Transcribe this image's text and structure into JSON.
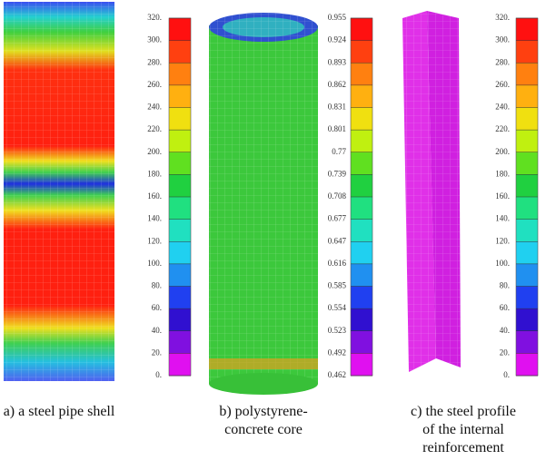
{
  "panels": [
    {
      "scale_labels": [
        "320.",
        "300.",
        "280.",
        "260.",
        "240.",
        "220.",
        "200.",
        "180.",
        "160.",
        "140.",
        "120.",
        "100.",
        "80.",
        "60.",
        "40.",
        "20.",
        "0."
      ],
      "caption_lines": [
        "a)  a steel pipe shell"
      ]
    },
    {
      "scale_labels": [
        "0.955",
        "0.924",
        "0.893",
        "0.862",
        "0.831",
        "0.801",
        "0.77",
        "0.739",
        "0.708",
        "0.677",
        "0.647",
        "0.616",
        "0.585",
        "0.554",
        "0.523",
        "0.492",
        "0.462"
      ],
      "caption_lines": [
        "b) polystyrene-",
        "concrete core"
      ]
    },
    {
      "scale_labels": [
        "320.",
        "300.",
        "280.",
        "260.",
        "240.",
        "220.",
        "200.",
        "180.",
        "160.",
        "140.",
        "120.",
        "100.",
        "80.",
        "60.",
        "40.",
        "20.",
        "0."
      ],
      "caption_lines": [
        "c) the steel profile",
        "of the internal",
        "reinforcement"
      ]
    }
  ]
}
